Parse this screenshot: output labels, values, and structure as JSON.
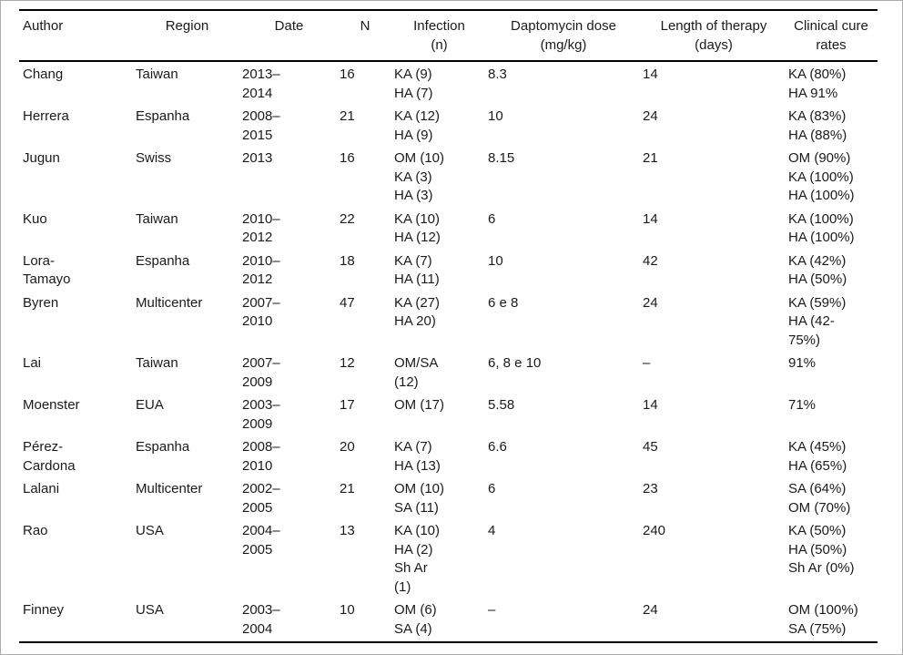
{
  "colors": {
    "rule": "#000000",
    "text": "#1a1a1a",
    "frame": "#ababab",
    "background": "#ffffff"
  },
  "table": {
    "columns": {
      "author": "Author",
      "region": "Region",
      "date": "Date",
      "n": "N",
      "infection": "Infection\n(n)",
      "dose": "Daptomycin dose\n(mg/kg)",
      "length": "Length of therapy\n(days)",
      "cure": "Clinical cure\nrates"
    },
    "rows": [
      {
        "author": "Chang",
        "region": "Taiwan",
        "date": "2013–\n2014",
        "n": "16",
        "infection": "KA (9)\nHA (7)",
        "dose": "8.3",
        "length": "14",
        "cure": "KA (80%)\nHA 91%"
      },
      {
        "author": "Herrera",
        "region": "Espanha",
        "date": "2008–\n2015",
        "n": "21",
        "infection": "KA (12)\nHA (9)",
        "dose": "10",
        "length": "24",
        "cure": "KA (83%)\nHA (88%)"
      },
      {
        "author": "Jugun",
        "region": "Swiss",
        "date": "2013",
        "n": "16",
        "infection": "OM (10)\nKA (3)\nHA (3)",
        "dose": "8.15",
        "length": "21",
        "cure": "OM (90%)\nKA (100%)\nHA (100%)"
      },
      {
        "author": "Kuo",
        "region": "Taiwan",
        "date": "2010–\n2012",
        "n": "22",
        "infection": "KA (10)\nHA (12)",
        "dose": "6",
        "length": "14",
        "cure": "KA (100%)\nHA (100%)"
      },
      {
        "author": "Lora-\nTamayo",
        "region": "Espanha",
        "date": "2010–\n2012",
        "n": "18",
        "infection": "KA (7)\nHA (11)",
        "dose": "10",
        "length": "42",
        "cure": "KA (42%)\nHA (50%)"
      },
      {
        "author": "Byren",
        "region": "Multicenter",
        "date": "2007–\n2010",
        "n": "47",
        "infection": "KA (27)\nHA 20)",
        "dose": "6 e 8",
        "length": "24",
        "cure": "KA (59%)\nHA (42-\n75%)"
      },
      {
        "author": "Lai",
        "region": "Taiwan",
        "date": "2007–\n2009",
        "n": "12",
        "infection": "OM/SA\n(12)",
        "dose": "6, 8 e 10",
        "length": "–",
        "cure": "91%"
      },
      {
        "author": "Moenster",
        "region": "EUA",
        "date": "2003–\n2009",
        "n": "17",
        "infection": "OM (17)",
        "dose": "5.58",
        "length": "14",
        "cure": "71%"
      },
      {
        "author": "Pérez-\nCardona",
        "region": "Espanha",
        "date": "2008–\n2010",
        "n": "20",
        "infection": "KA (7)\nHA (13)",
        "dose": "6.6",
        "length": "45",
        "cure": "KA (45%)\nHA (65%)"
      },
      {
        "author": "Lalani",
        "region": "Multicenter",
        "date": "2002–\n2005",
        "n": "21",
        "infection": "OM (10)\nSA (11)",
        "dose": "6",
        "length": "23",
        "cure": "SA (64%)\nOM (70%)"
      },
      {
        "author": "Rao",
        "region": "USA",
        "date": "2004–\n2005",
        "n": "13",
        "infection": "KA (10)\nHA (2)\nSh Ar\n(1)",
        "dose": "4",
        "length": "240",
        "cure": "KA (50%)\nHA (50%)\nSh Ar (0%)"
      },
      {
        "author": "Finney",
        "region": "USA",
        "date": "2003–\n2004",
        "n": "10",
        "infection": "OM (6)\nSA (4)",
        "dose": "–",
        "length": "24",
        "cure": "OM (100%)\nSA (75%)"
      }
    ]
  }
}
